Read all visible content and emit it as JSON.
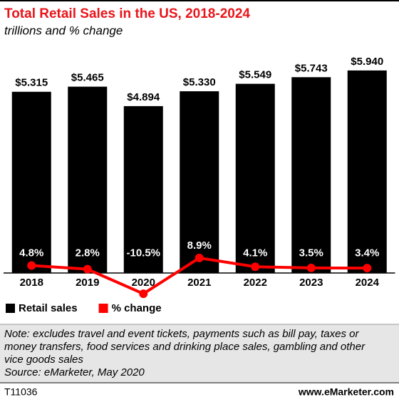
{
  "chart_data": {
    "type": "bar_line",
    "title": "Total Retail Sales in the US, 2018-2024",
    "subtitle": "trillions and % change",
    "categories": [
      "2018",
      "2019",
      "2020",
      "2021",
      "2022",
      "2023",
      "2024"
    ],
    "series": [
      {
        "name": "Retail sales",
        "type": "bar",
        "color": "#000000",
        "values": [
          5.315,
          5.465,
          4.894,
          5.33,
          5.549,
          5.743,
          5.94
        ],
        "value_labels": [
          "$5.315",
          "$5.465",
          "$4.894",
          "$5.330",
          "$5.549",
          "$5.743",
          "$5.940"
        ]
      },
      {
        "name": "% change",
        "type": "line",
        "axis": "y2",
        "color": "#ff0000",
        "values": [
          4.8,
          2.8,
          -10.5,
          8.9,
          4.1,
          3.5,
          3.4
        ],
        "value_labels": [
          "4.8%",
          "2.8%",
          "-10.5%",
          "8.9%",
          "4.1%",
          "3.5%",
          "3.4%"
        ]
      }
    ],
    "ylim": [
      0,
      6
    ],
    "y2lim": [
      -12,
      10
    ],
    "note": [
      "Note: excludes travel and event tickets, payments such as bill pay, taxes or",
      "money transfers, food services and drinking place sales, gambling and other",
      "vice goods sales"
    ],
    "source": "Source: eMarketer, May 2020",
    "chart_id": "T11036",
    "website": "www.eMarketer.com"
  }
}
